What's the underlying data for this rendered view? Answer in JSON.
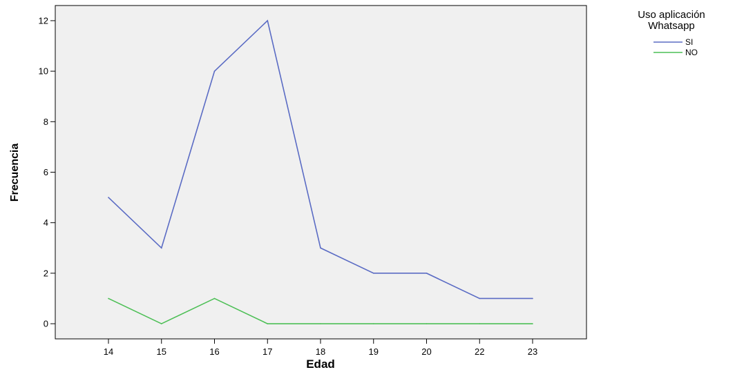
{
  "chart_data": {
    "type": "line",
    "xlabel": "Edad",
    "ylabel": "Frecuencia",
    "categories": [
      "14",
      "15",
      "16",
      "17",
      "18",
      "19",
      "20",
      "22",
      "23"
    ],
    "ylim": [
      -0.6,
      12.6
    ],
    "yticks": [
      0,
      2,
      4,
      6,
      8,
      10,
      12
    ],
    "grid": false,
    "legend_title": "Uso aplicación Whatsapp",
    "legend_title_lines": [
      "Uso aplicación",
      "Whatsapp"
    ],
    "legend_position": "top-right, outside plot",
    "plot_background": "#f0f0f0",
    "series": [
      {
        "name": "SI",
        "color": "#5a6bc4",
        "values": [
          5,
          3,
          10,
          12,
          3,
          2,
          2,
          1,
          1
        ]
      },
      {
        "name": "NO",
        "color": "#4cbf55",
        "values": [
          1,
          0,
          1,
          0,
          0,
          0,
          0,
          0,
          0
        ]
      }
    ]
  }
}
